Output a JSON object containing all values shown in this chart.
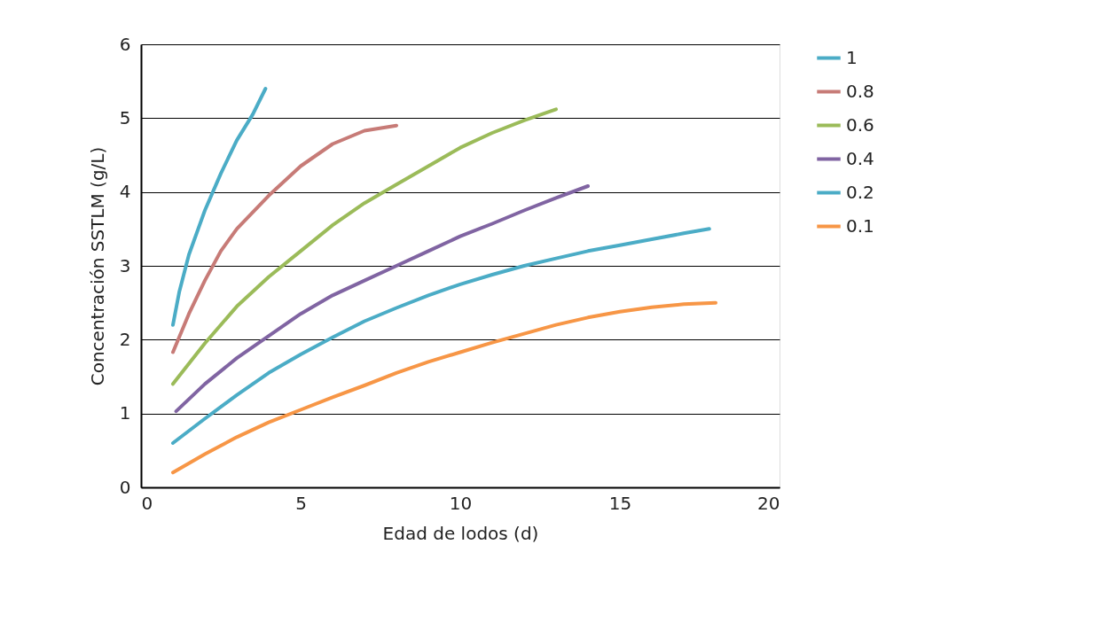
{
  "chart_data": {
    "type": "line",
    "xlabel": "Edad de lodos (d)",
    "ylabel": "Concentración SSTLM (g/L)",
    "xlim": [
      0,
      20
    ],
    "xticks": [
      0,
      5,
      10,
      15,
      20
    ],
    "ylim": [
      0,
      6
    ],
    "yticks": [
      0,
      1,
      2,
      3,
      4,
      5,
      6
    ],
    "grid": "y",
    "legend": "right",
    "marker": "none",
    "line_style": "solid",
    "series": [
      {
        "name": "1",
        "color": "#4bacc6",
        "x": [
          1,
          1.2,
          1.5,
          2,
          2.5,
          3,
          3.5,
          3.9
        ],
        "values": [
          2.2,
          2.65,
          3.15,
          3.75,
          4.25,
          4.7,
          5.05,
          5.4
        ]
      },
      {
        "name": "0.8",
        "color": "#c77b77",
        "x": [
          1,
          1.5,
          2,
          2.5,
          3,
          4,
          5,
          6,
          7,
          8
        ],
        "values": [
          1.83,
          2.35,
          2.8,
          3.2,
          3.5,
          3.95,
          4.35,
          4.65,
          4.83,
          4.9
        ]
      },
      {
        "name": "0.6",
        "color": "#9bbb59",
        "x": [
          1,
          2,
          3,
          4,
          5,
          6,
          7,
          8,
          9,
          10,
          11,
          12,
          13
        ],
        "values": [
          1.4,
          1.95,
          2.45,
          2.85,
          3.2,
          3.55,
          3.85,
          4.1,
          4.35,
          4.6,
          4.8,
          4.97,
          5.12
        ]
      },
      {
        "name": "0.4",
        "color": "#8064a2",
        "x": [
          1.1,
          2,
          3,
          4,
          5,
          6,
          7,
          8,
          9,
          10,
          11,
          12,
          13,
          14
        ],
        "values": [
          1.03,
          1.4,
          1.75,
          2.05,
          2.35,
          2.6,
          2.8,
          3.0,
          3.2,
          3.4,
          3.57,
          3.75,
          3.92,
          4.08
        ]
      },
      {
        "name": "0.2",
        "color": "#4bacc6",
        "x": [
          1,
          2,
          3,
          4,
          5,
          6,
          7,
          8,
          9,
          10,
          11,
          12,
          13,
          14,
          15,
          16,
          17,
          17.8
        ],
        "values": [
          0.6,
          0.93,
          1.25,
          1.55,
          1.8,
          2.03,
          2.25,
          2.43,
          2.6,
          2.75,
          2.88,
          3.0,
          3.1,
          3.2,
          3.28,
          3.36,
          3.44,
          3.5
        ]
      },
      {
        "name": "0.1",
        "color": "#f79646",
        "x": [
          1,
          2,
          3,
          4,
          5,
          6,
          7,
          8,
          9,
          10,
          11,
          12,
          13,
          14,
          15,
          16,
          17,
          18
        ],
        "values": [
          0.2,
          0.45,
          0.68,
          0.88,
          1.05,
          1.22,
          1.38,
          1.55,
          1.7,
          1.83,
          1.96,
          2.08,
          2.2,
          2.3,
          2.38,
          2.44,
          2.48,
          2.5
        ]
      }
    ]
  }
}
